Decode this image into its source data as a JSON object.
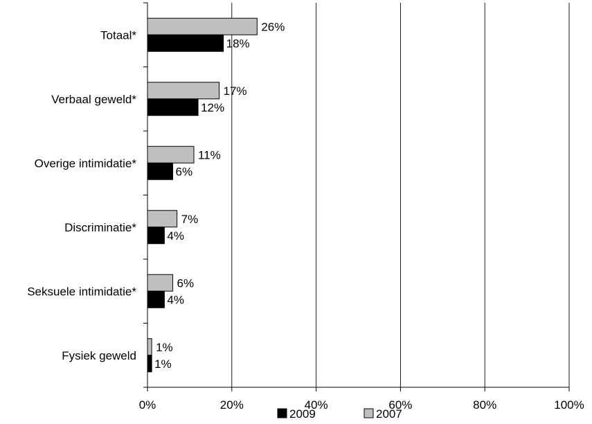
{
  "chart_data": {
    "type": "bar",
    "orientation": "horizontal",
    "categories": [
      "Totaal*",
      "Verbaal geweld*",
      "Overige intimidatie*",
      "Discriminatie*",
      "Seksuele intimidatie*",
      "Fysiek geweld"
    ],
    "series": [
      {
        "name": "2007",
        "values": [
          26,
          17,
          11,
          7,
          6,
          1
        ],
        "labels": [
          "26%",
          "17%",
          "11%",
          "7%",
          "6%",
          "1%"
        ],
        "color": "#bfbfbf"
      },
      {
        "name": "2009",
        "values": [
          18,
          12,
          6,
          4,
          4,
          1
        ],
        "labels": [
          "18%",
          "12%",
          "6%",
          "4%",
          "4%",
          "1%"
        ],
        "color": "#000000"
      }
    ],
    "xlim": [
      0,
      100
    ],
    "xticks": [
      0,
      20,
      40,
      60,
      80,
      100
    ],
    "xtick_labels": [
      "0%",
      "20%",
      "40%",
      "60%",
      "80%",
      "100%"
    ],
    "grid": "vertical",
    "legend": {
      "position": "bottom",
      "entries": [
        "2009",
        "2007"
      ]
    }
  }
}
